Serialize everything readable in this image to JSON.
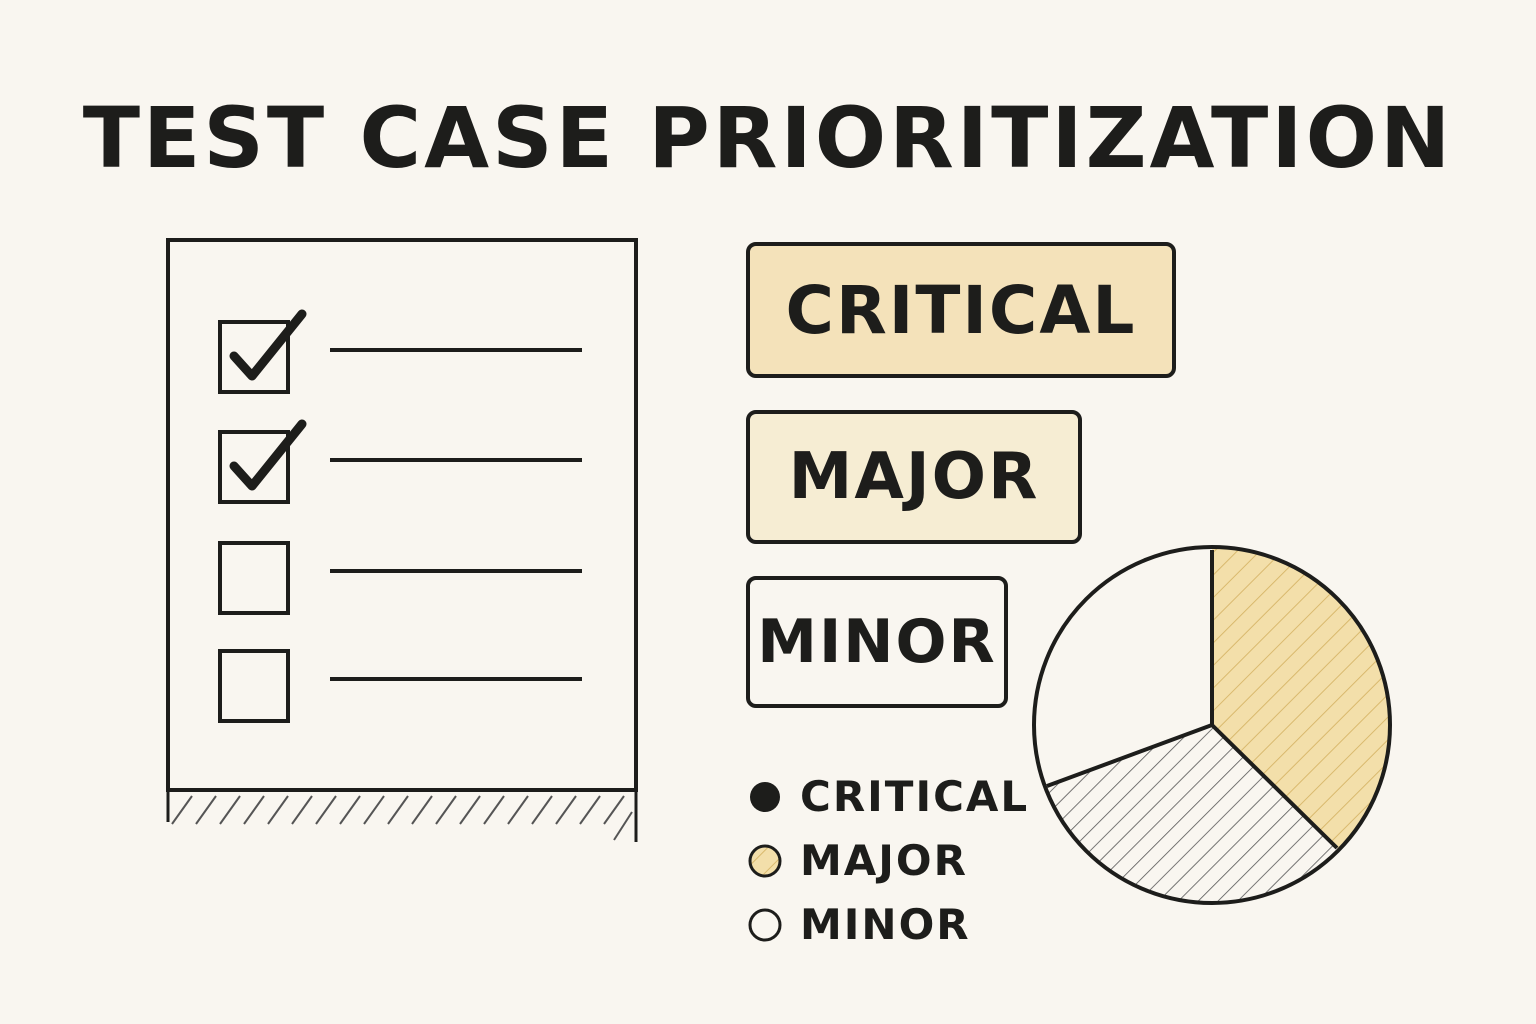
{
  "title": "TEST CASE PRIORITIZATION",
  "checklist": {
    "items": [
      {
        "checked": true
      },
      {
        "checked": true
      },
      {
        "checked": false
      },
      {
        "checked": false
      }
    ]
  },
  "priority_boxes": [
    {
      "label": "CRITICAL",
      "fill": "#f4e2ba"
    },
    {
      "label": "MAJOR",
      "fill": "#f6edd3"
    },
    {
      "label": "MINOR",
      "fill": "#f9f6f0"
    }
  ],
  "legend": [
    {
      "label": "CRITICAL",
      "swatch": "solid-dark"
    },
    {
      "label": "MAJOR",
      "swatch": "hatched-yellow"
    },
    {
      "label": "MINOR",
      "swatch": "empty"
    }
  ],
  "colors": {
    "background": "#f9f6f0",
    "ink": "#1d1d1b",
    "critical_fill": "#f4e2ba",
    "major_fill": "#f6edd3",
    "pie_yellow": "#f3dfaa"
  }
}
